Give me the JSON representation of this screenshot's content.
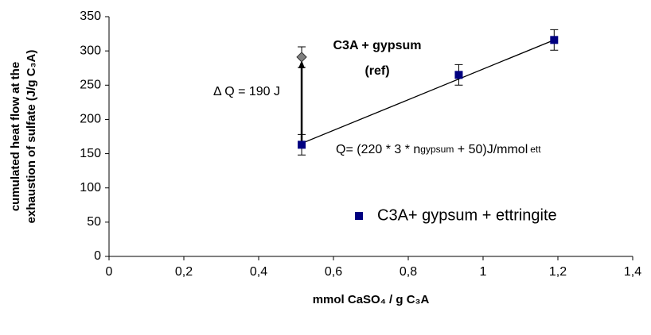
{
  "chart_data": {
    "type": "scatter",
    "xlabel": "mmol CaSO₄ / g C₃A",
    "ylabel": [
      "cumulated heat flow at the",
      "exhaustion of sulfate (J/g C₃A)"
    ],
    "xlim": [
      0,
      1.4
    ],
    "xticks": [
      0,
      {
        "value": 0.2,
        "label": "0,2"
      },
      {
        "value": 0.4,
        "label": "0,4"
      },
      {
        "value": 0.6,
        "label": "0,6"
      },
      {
        "value": 0.8,
        "label": "0,8"
      },
      1,
      {
        "value": 1.2,
        "label": "1,2"
      },
      {
        "value": 1.4,
        "label": "1,4"
      }
    ],
    "ylim": [
      0,
      350
    ],
    "yticks": [
      0,
      50,
      100,
      150,
      200,
      250,
      300,
      350
    ],
    "grid": false,
    "legend": "lower right",
    "series": [
      {
        "name": "C3A+ gypsum + ettringite",
        "color": "#000080",
        "x": [
          0.515,
          0.935,
          1.19
        ],
        "values": [
          163,
          265,
          316
        ],
        "errors": [
          15,
          15,
          15
        ]
      }
    ],
    "reference": {
      "x": 0.515,
      "value": 291,
      "error": 15,
      "color": "#808080"
    },
    "trendline": {
      "x": [
        0.515,
        1.19
      ],
      "values": [
        165,
        316
      ]
    },
    "annotations": {
      "delta": "Δ Q = 190 J",
      "ref_title": "C3A + gypsum",
      "ref_sub": "(ref)",
      "equation": [
        "Q= (220 * 3 * n",
        "gypsum",
        " + 50)J/mmol",
        "ett"
      ]
    }
  }
}
